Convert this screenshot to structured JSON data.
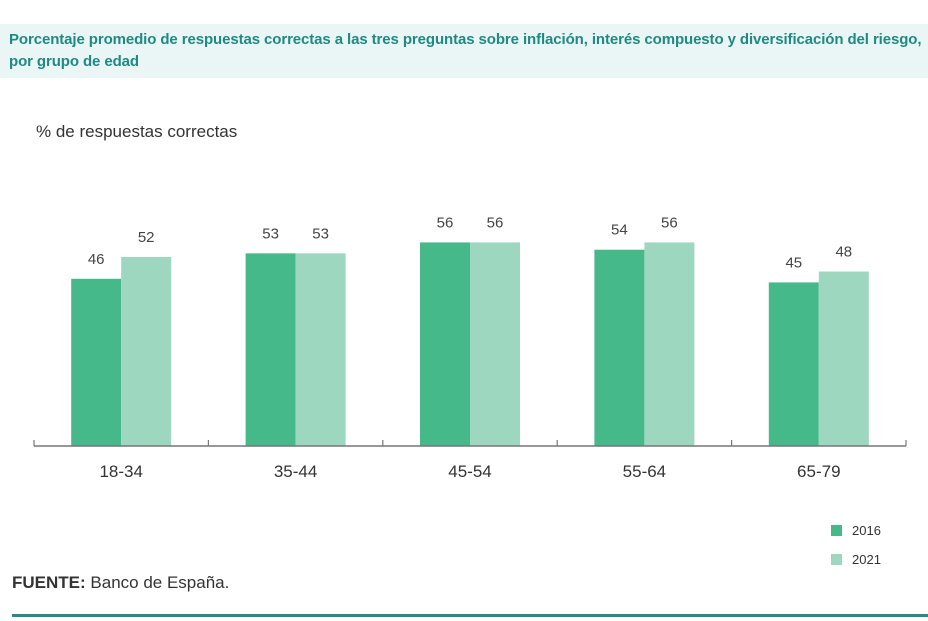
{
  "chart_data": {
    "type": "bar",
    "title": "Porcentaje promedio de respuestas correctas a las tres preguntas sobre inflación, interés compuesto y diversificación del riesgo, por grupo de edad",
    "ylabel": "% de respuestas correctas",
    "xlabel": "",
    "categories": [
      "18-34",
      "35-44",
      "45-54",
      "55-64",
      "65-79"
    ],
    "series": [
      {
        "name": "2016",
        "values": [
          46,
          53,
          56,
          54,
          45
        ],
        "color": "#45b98a"
      },
      {
        "name": "2021",
        "values": [
          52,
          53,
          56,
          56,
          48
        ],
        "color": "#9dd7c0"
      }
    ],
    "ylim": [
      0,
      70
    ],
    "grid": false,
    "legend_position": "bottom-right",
    "data_labels": true
  },
  "source": {
    "label": "FUENTE:",
    "text": " Banco de España."
  }
}
